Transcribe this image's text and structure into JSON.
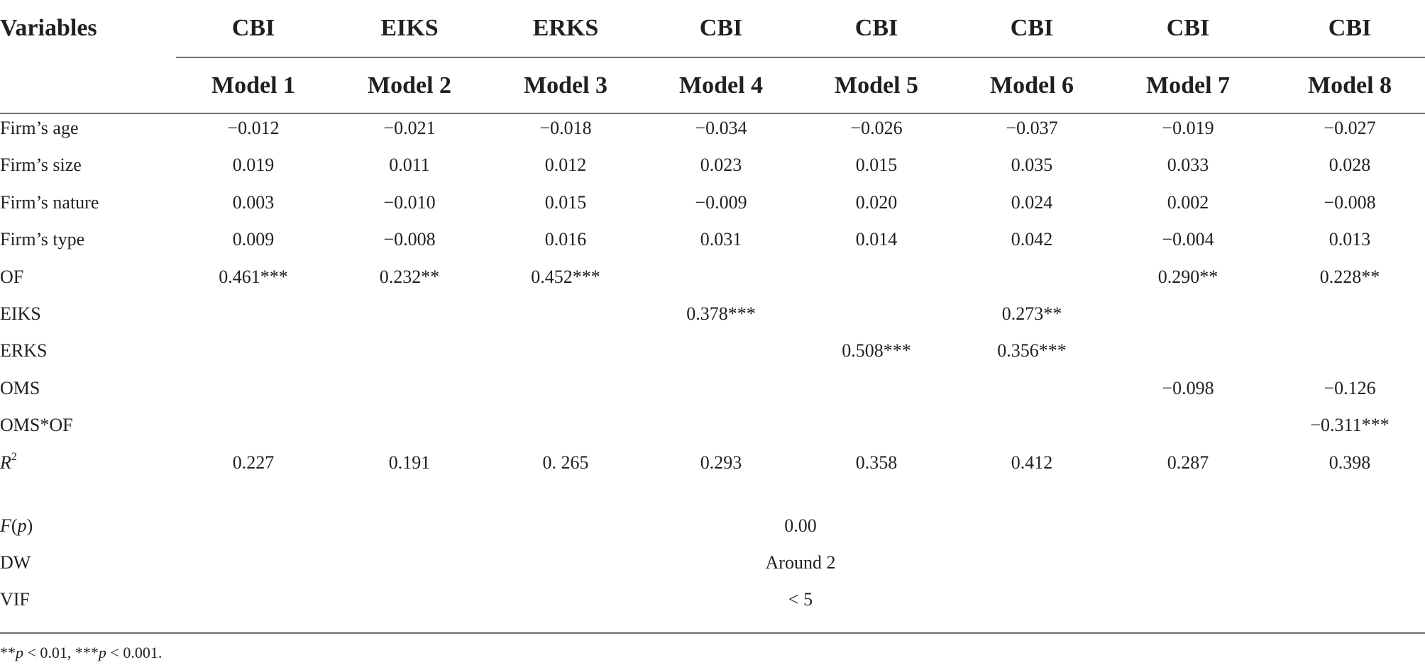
{
  "header": {
    "variables": "Variables",
    "dependent": [
      "CBI",
      "EIKS",
      "ERKS",
      "CBI",
      "CBI",
      "CBI",
      "CBI",
      "CBI"
    ],
    "models": [
      "Model 1",
      "Model 2",
      "Model 3",
      "Model 4",
      "Model 5",
      "Model 6",
      "Model 7",
      "Model 8"
    ]
  },
  "rows": [
    {
      "label": "Firm’s age",
      "values": [
        "−0.012",
        "−0.021",
        "−0.018",
        "−0.034",
        "−0.026",
        "−0.037",
        "−0.019",
        "−0.027"
      ]
    },
    {
      "label": "Firm’s size",
      "values": [
        "0.019",
        "0.011",
        "0.012",
        "0.023",
        "0.015",
        "0.035",
        "0.033",
        "0.028"
      ]
    },
    {
      "label": "Firm’s nature",
      "values": [
        "0.003",
        "−0.010",
        "0.015",
        "−0.009",
        "0.020",
        "0.024",
        "0.002",
        "−0.008"
      ]
    },
    {
      "label": "Firm’s type",
      "values": [
        "0.009",
        "−0.008",
        "0.016",
        "0.031",
        "0.014",
        "0.042",
        "−0.004",
        "0.013"
      ]
    },
    {
      "label": "OF",
      "values": [
        "0.461***",
        "0.232**",
        "0.452***",
        "",
        "",
        "",
        "0.290**",
        "0.228**"
      ]
    },
    {
      "label": "EIKS",
      "values": [
        "",
        "",
        "",
        "0.378***",
        "",
        "0.273**",
        "",
        ""
      ]
    },
    {
      "label": "ERKS",
      "values": [
        "",
        "",
        "",
        "",
        "0.508***",
        "0.356***",
        "",
        ""
      ]
    },
    {
      "label": "OMS",
      "values": [
        "",
        "",
        "",
        "",
        "",
        "",
        "−0.098",
        "−0.126"
      ]
    },
    {
      "label": "OMS*OF",
      "values": [
        "",
        "",
        "",
        "",
        "",
        "",
        "",
        "−0.311***"
      ]
    }
  ],
  "r2": {
    "label": "R",
    "sup": "2",
    "values": [
      "0.227",
      "0.191",
      "0. 265",
      "0.293",
      "0.358",
      "0.412",
      "0.287",
      "0.398"
    ]
  },
  "stats": [
    {
      "label": "F(p)",
      "value": "0.00"
    },
    {
      "label": "DW",
      "value": "Around 2"
    },
    {
      "label": "VIF",
      "value": "< 5"
    }
  ],
  "footnote": "**p < 0.01, ***p < 0.001."
}
